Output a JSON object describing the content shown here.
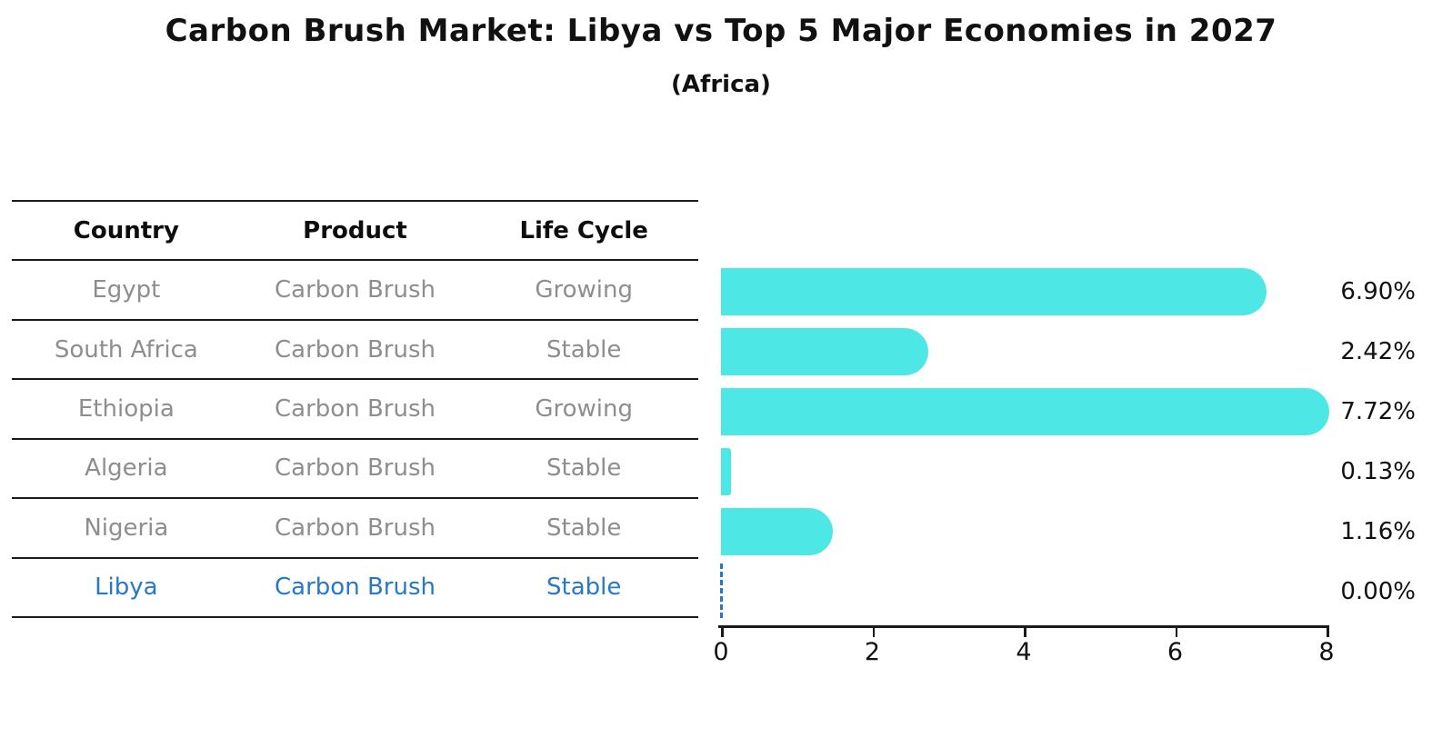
{
  "title": "Carbon Brush Market: Libya vs Top 5 Major Economies in 2027",
  "subtitle": "(Africa)",
  "table": {
    "headers": [
      "Country",
      "Product",
      "Life Cycle"
    ],
    "rows": [
      {
        "country": "Egypt",
        "product": "Carbon Brush",
        "life_cycle": "Growing",
        "highlight": false
      },
      {
        "country": "South Africa",
        "product": "Carbon Brush",
        "life_cycle": "Stable",
        "highlight": false
      },
      {
        "country": "Ethiopia",
        "product": "Carbon Brush",
        "life_cycle": "Growing",
        "highlight": false
      },
      {
        "country": "Algeria",
        "product": "Carbon Brush",
        "life_cycle": "Stable",
        "highlight": false
      },
      {
        "country": "Nigeria",
        "product": "Carbon Brush",
        "life_cycle": "Stable",
        "highlight": false
      },
      {
        "country": "Libya",
        "product": "Carbon Brush",
        "life_cycle": "Stable",
        "highlight": true
      }
    ]
  },
  "chart_data": {
    "type": "bar",
    "orientation": "horizontal",
    "title": "Carbon Brush Market: Libya vs Top 5 Major Economies in 2027",
    "subtitle": "(Africa)",
    "categories": [
      "Egypt",
      "South Africa",
      "Ethiopia",
      "Algeria",
      "Nigeria",
      "Libya"
    ],
    "values": [
      6.9,
      2.42,
      7.72,
      0.13,
      1.16,
      0.0
    ],
    "value_labels": [
      "6.90%",
      "2.42%",
      "7.72%",
      "0.13%",
      "1.16%",
      "0.00%"
    ],
    "xlabel": "",
    "ylabel": "",
    "xlim": [
      0,
      8
    ],
    "x_ticks": [
      0,
      2,
      4,
      6,
      8
    ],
    "grid": false,
    "legend": "none",
    "bar_color": "#4de8e6",
    "highlight_color": "#2878c8",
    "zero_value_style": "dashed-line"
  }
}
